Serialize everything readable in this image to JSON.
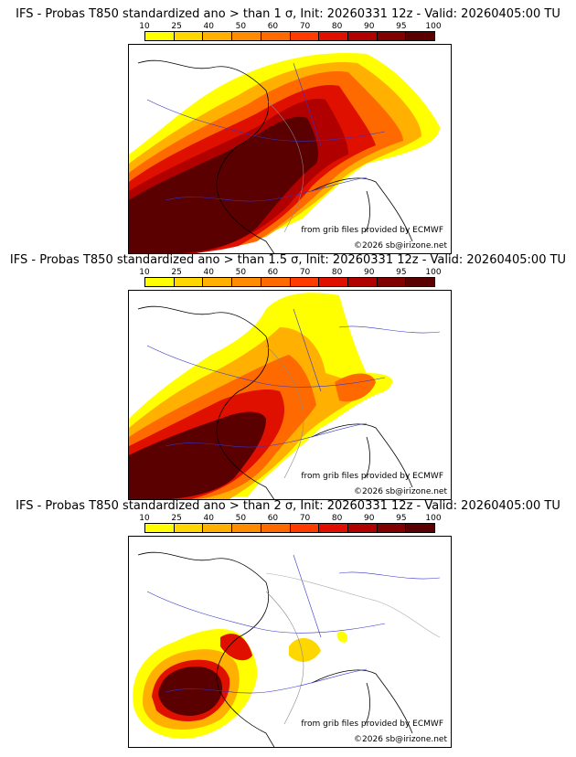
{
  "legend": {
    "ticks": [
      "10",
      "25",
      "40",
      "50",
      "60",
      "70",
      "80",
      "90",
      "95",
      "100"
    ],
    "colors": [
      "#ffff00",
      "#ffd700",
      "#ffb000",
      "#ff8c00",
      "#ff6a00",
      "#ff3b00",
      "#e01000",
      "#b00000",
      "#800000",
      "#5a0000"
    ]
  },
  "panels": [
    {
      "title": "IFS - Probas T850  standardized ano > than 1 σ, Init: 20260331 12z - Valid: 20260405:00 TU",
      "source_credit": "from grib files provided by ECMWF",
      "copyright": "©2026 sb@irizone.net",
      "threshold_sigma": 1
    },
    {
      "title": "IFS - Probas T850  standardized ano > than 1.5 σ, Init: 20260331 12z - Valid: 20260405:00 TU",
      "source_credit": "from grib files provided by ECMWF",
      "copyright": "©2026 sb@irizone.net",
      "threshold_sigma": 1.5
    },
    {
      "title": "IFS - Probas T850  standardized ano > than 2 σ, Init: 20260331 12z - Valid: 20260405:00 TU",
      "source_credit": "from grib files provided by ECMWF",
      "copyright": "©2026 sb@irizone.net",
      "threshold_sigma": 2
    }
  ]
}
